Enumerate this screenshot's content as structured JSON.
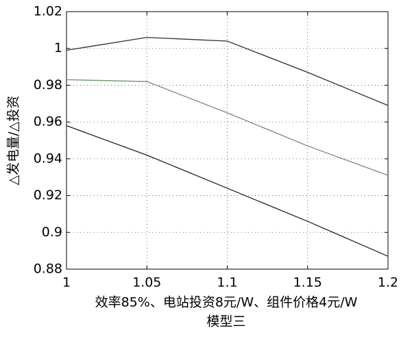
{
  "chart_data": {
    "type": "line",
    "xlabel": "效率85%、电站投资8元/W、组件价格4元/W",
    "caption": "模型三",
    "ylabel": "△发电量/△投资",
    "x": [
      1,
      1.05,
      1.1,
      1.15,
      1.2
    ],
    "series": [
      {
        "color": "#3a2a2a",
        "values": [
          0.999,
          1.006,
          1.004,
          0.987,
          0.969
        ]
      },
      {
        "color": "#6f8f6f",
        "values": [
          0.983,
          0.982,
          0.965,
          0.947,
          0.931
        ]
      },
      {
        "color": "#222222",
        "values": [
          0.958,
          0.942,
          0.924,
          0.906,
          0.887
        ]
      }
    ],
    "xlim": [
      1,
      1.2
    ],
    "xticks": [
      1,
      1.05,
      1.1,
      1.15,
      1.2
    ],
    "ylim": [
      0.88,
      1.02
    ],
    "yticks": [
      0.88,
      0.9,
      0.92,
      0.94,
      0.96,
      0.98,
      1,
      1.02
    ],
    "grid": true
  }
}
